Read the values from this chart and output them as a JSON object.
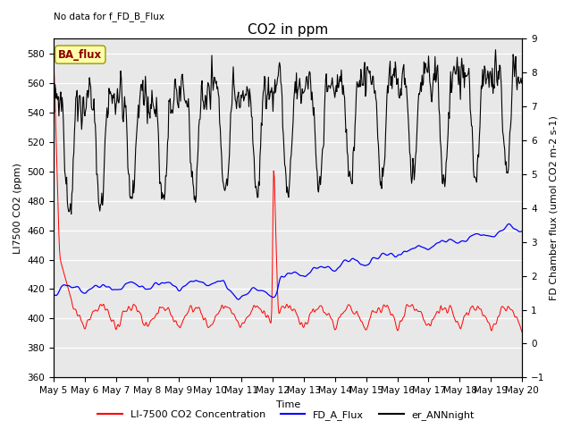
{
  "title": "CO2 in ppm",
  "top_left_text": "No data for f_FD_B_Flux",
  "annotation_text": "BA_flux",
  "xlabel": "Time",
  "ylabel_left": "LI7500 CO2 (ppm)",
  "ylabel_right": "FD Chamber flux (μmol CO2 m-2 s-1)",
  "ylabel_right_plain": "FD Chamber flux (umol CO2 m-2 s-1)",
  "xlim_days": [
    0,
    15
  ],
  "ylim_left": [
    360,
    590
  ],
  "ylim_right": [
    -1.0,
    9.0
  ],
  "yticks_left": [
    360,
    380,
    400,
    420,
    440,
    460,
    480,
    500,
    520,
    540,
    560,
    580
  ],
  "yticks_right": [
    -1.0,
    0.0,
    1.0,
    2.0,
    3.0,
    4.0,
    5.0,
    6.0,
    7.0,
    8.0,
    9.0
  ],
  "xtick_positions": [
    0,
    1,
    2,
    3,
    4,
    5,
    6,
    7,
    8,
    9,
    10,
    11,
    12,
    13,
    14,
    15
  ],
  "xtick_labels": [
    "May 5",
    "May 6",
    "May 7",
    "May 8",
    "May 9",
    "May 10",
    "May 11",
    "May 12",
    "May 13",
    "May 14",
    "May 15",
    "May 16",
    "May 17",
    "May 18",
    "May 19",
    "May 20"
  ],
  "legend_entries": [
    "LI-7500 CO2 Concentration",
    "FD_A_Flux",
    "er_ANNnight"
  ],
  "background_color": "#e8e8e8",
  "grid_color": "#ffffff",
  "title_fontsize": 11,
  "axis_fontsize": 8,
  "tick_fontsize": 7.5,
  "legend_fontsize": 8
}
